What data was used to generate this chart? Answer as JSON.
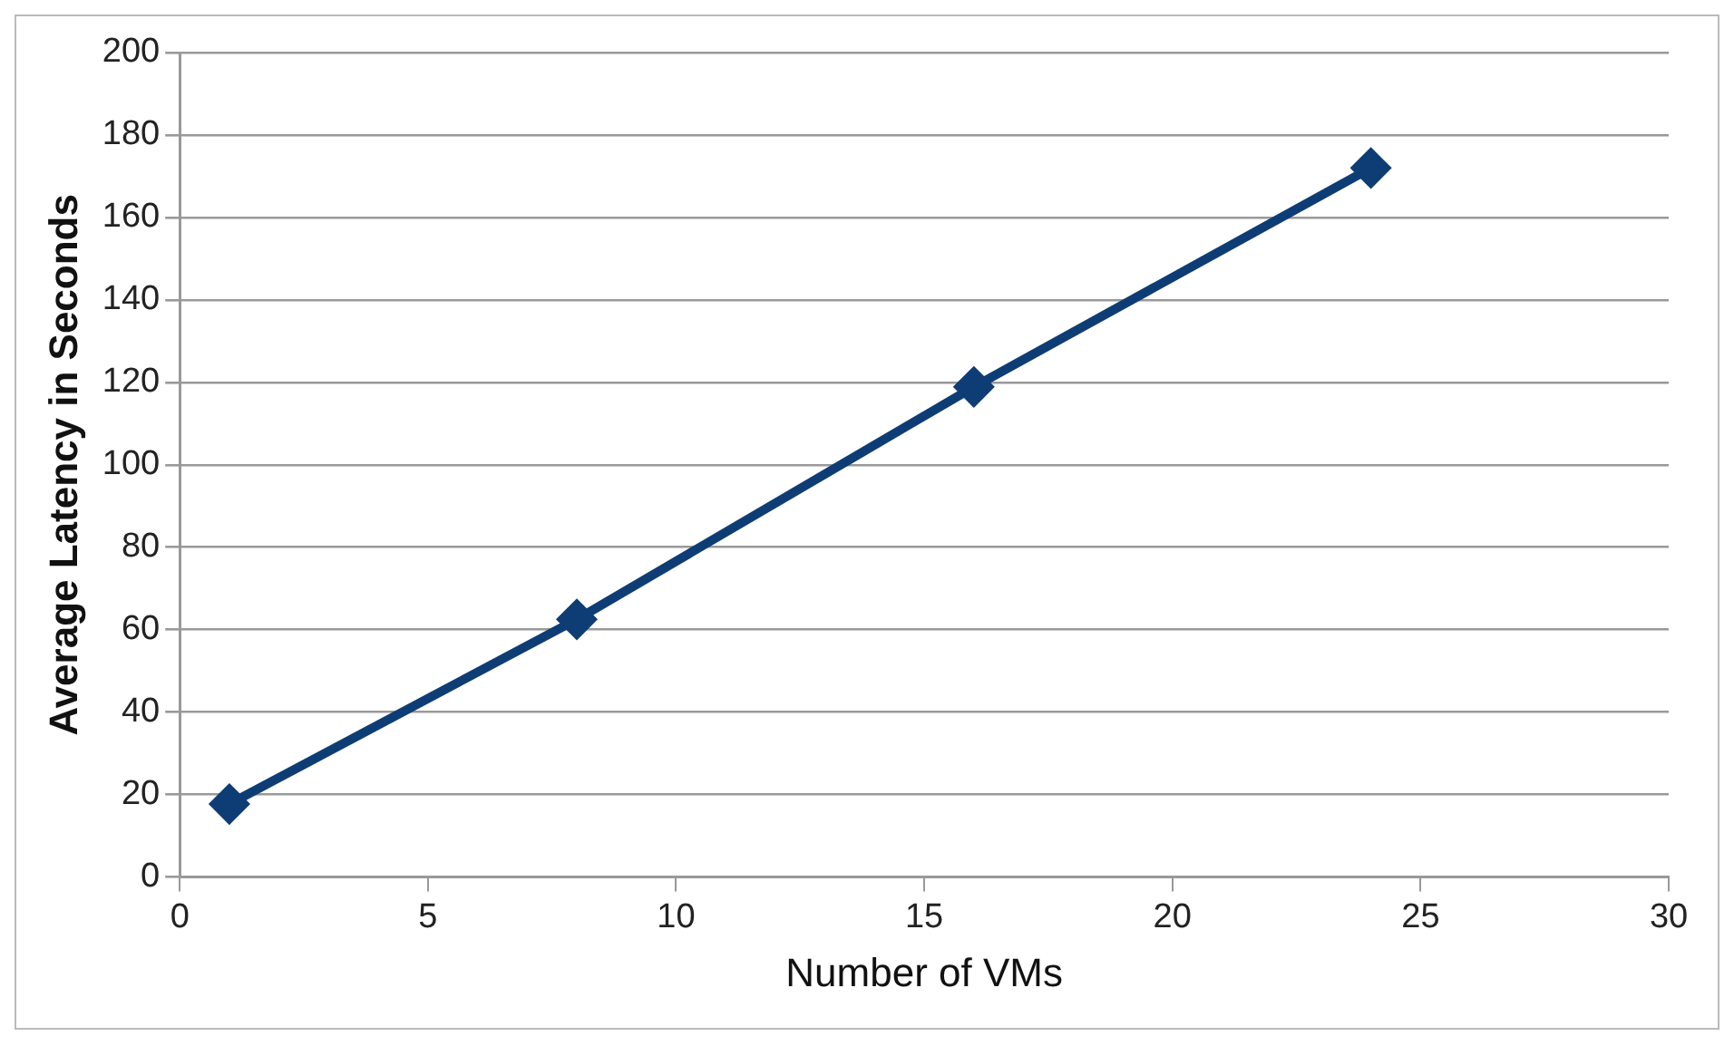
{
  "chart_data": {
    "type": "line",
    "xlabel": "Number of VMs",
    "ylabel": "Average Latency in Seconds",
    "x": [
      1,
      8,
      16,
      24
    ],
    "series": [
      {
        "color": "#0e3d75",
        "values": [
          17.7,
          62.5,
          118.9,
          172
        ]
      }
    ],
    "xlim": [
      0,
      30
    ],
    "xticks": [
      0,
      5,
      10,
      15,
      20,
      25,
      30
    ],
    "ylim": [
      0,
      200
    ],
    "yticks": [
      0,
      20,
      40,
      60,
      80,
      100,
      120,
      140,
      160,
      180,
      200
    ],
    "grid": "y",
    "legend": false,
    "marker": "diamond",
    "line_style": "solid"
  }
}
